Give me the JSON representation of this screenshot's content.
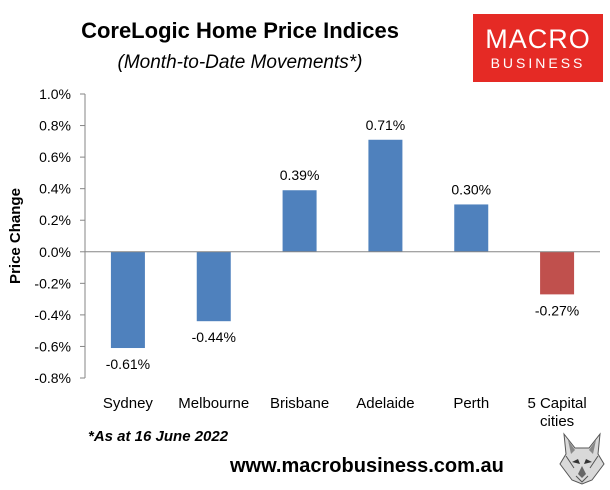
{
  "header": {
    "title": "CoreLogic Home Price Indices",
    "subtitle": "(Month-to-Date Movements*)"
  },
  "logo": {
    "line1": "MACRO",
    "line2": "BUSINESS",
    "color": "#e52a25"
  },
  "chart_data": {
    "type": "bar",
    "categories": [
      "Sydney",
      "Melbourne",
      "Brisbane",
      "Adelaide",
      "Perth",
      "5 Capital cities"
    ],
    "values": [
      -0.61,
      -0.44,
      0.39,
      0.71,
      0.3,
      -0.27
    ],
    "data_labels": [
      "-0.61%",
      "-0.44%",
      "0.39%",
      "0.71%",
      "0.30%",
      "-0.27%"
    ],
    "bar_colors": [
      "#4f81bd",
      "#4f81bd",
      "#4f81bd",
      "#4f81bd",
      "#4f81bd",
      "#c0504d"
    ],
    "xlabel": "",
    "ylabel": "Price Change",
    "ylim": [
      -0.8,
      1.0
    ],
    "yticks": [
      1.0,
      0.8,
      0.6,
      0.4,
      0.2,
      0.0,
      -0.2,
      -0.4,
      -0.6,
      -0.8
    ],
    "ytick_labels": [
      "1.0%",
      "0.8%",
      "0.6%",
      "0.4%",
      "0.2%",
      "0.0%",
      "-0.2%",
      "-0.4%",
      "-0.6%",
      "-0.8%"
    ],
    "grid": false,
    "legend": "none"
  },
  "footnote": "*As at 16 June 2022",
  "website": "www.macrobusiness.com.au",
  "wolf_icon": "wolf-head-icon"
}
